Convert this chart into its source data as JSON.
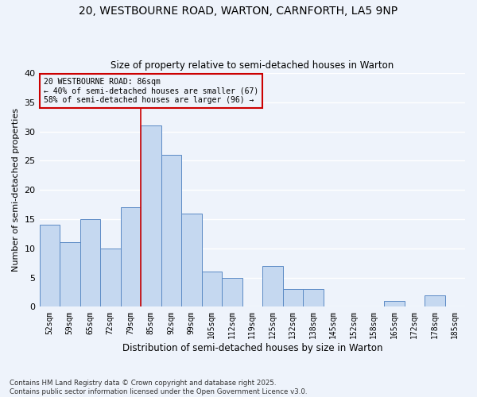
{
  "title1": "20, WESTBOURNE ROAD, WARTON, CARNFORTH, LA5 9NP",
  "title2": "Size of property relative to semi-detached houses in Warton",
  "xlabel": "Distribution of semi-detached houses by size in Warton",
  "ylabel": "Number of semi-detached properties",
  "categories": [
    "52sqm",
    "59sqm",
    "65sqm",
    "72sqm",
    "79sqm",
    "85sqm",
    "92sqm",
    "99sqm",
    "105sqm",
    "112sqm",
    "119sqm",
    "125sqm",
    "132sqm",
    "138sqm",
    "145sqm",
    "152sqm",
    "158sqm",
    "165sqm",
    "172sqm",
    "178sqm",
    "185sqm"
  ],
  "values": [
    14,
    11,
    15,
    10,
    17,
    31,
    26,
    16,
    6,
    5,
    0,
    7,
    3,
    3,
    0,
    0,
    0,
    1,
    0,
    2,
    0
  ],
  "bar_color": "#c5d8f0",
  "bar_edge_color": "#5b8ac5",
  "highlight_index": 5,
  "vline_x": 5,
  "annotation_title": "20 WESTBOURNE ROAD: 86sqm",
  "annotation_line1": "← 40% of semi-detached houses are smaller (67)",
  "annotation_line2": "58% of semi-detached houses are larger (96) →",
  "footer": "Contains HM Land Registry data © Crown copyright and database right 2025.\nContains public sector information licensed under the Open Government Licence v3.0.",
  "ylim": [
    0,
    40
  ],
  "background_color": "#eef3fb",
  "grid_color": "#ffffff",
  "vline_color": "#cc0000"
}
